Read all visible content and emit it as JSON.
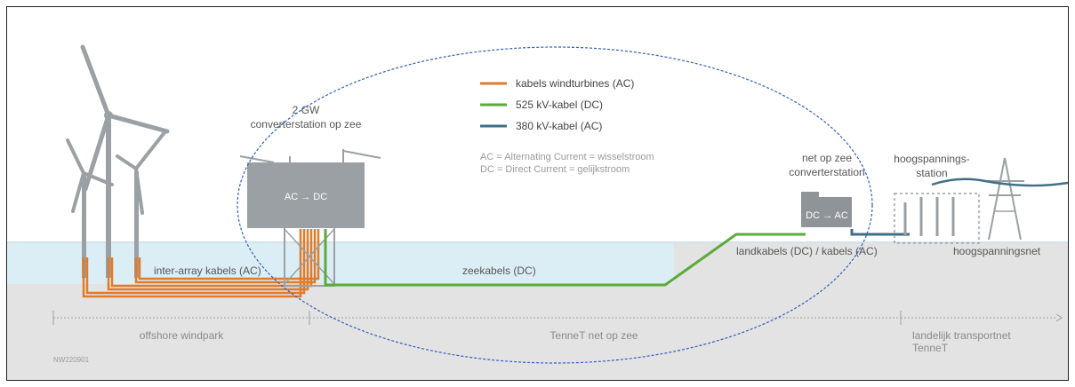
{
  "legend": {
    "items": [
      {
        "label": "kabels windturbines (AC)",
        "color": "#e07b2a"
      },
      {
        "label": "525 kV-kabel (DC)",
        "color": "#5aab3a"
      },
      {
        "label": "380 kV-kabel (AC)",
        "color": "#3f6f86"
      }
    ],
    "note_ac": "AC = Alternating Current = wisselstroom",
    "note_dc": "DC = Direct Current = gelijkstroom"
  },
  "offshore_station": {
    "title_line1": "2 GW",
    "title_line2": "converterstation op zee",
    "box_label": "AC → DC"
  },
  "onshore_station": {
    "title_line1": "net op zee",
    "title_line2": "converterstation",
    "box_label": "DC → AC"
  },
  "hv_station": {
    "title_line1": "hoogspannings-",
    "title_line2": "station"
  },
  "cable_labels": {
    "inter_array": "inter-array kabels (AC)",
    "sea": "zeekabels (DC)",
    "land": "landkabels (DC) / kabels (AC)",
    "grid": "hoogspanningsnet"
  },
  "zones": {
    "offshore": "offshore windpark",
    "tennet_sea": "TenneT net op zee",
    "national_line1": "landelijk transportnet",
    "national_line2": "TenneT"
  },
  "code": "NW220901",
  "colors": {
    "ac_turbine": "#e07b2a",
    "dc": "#5aab3a",
    "ac_380": "#3f6f86",
    "sea_band": "#dceef5",
    "ground": "#e3e3e4",
    "structure": "#9aa0a4",
    "ellipse": "#2f5fbf"
  }
}
